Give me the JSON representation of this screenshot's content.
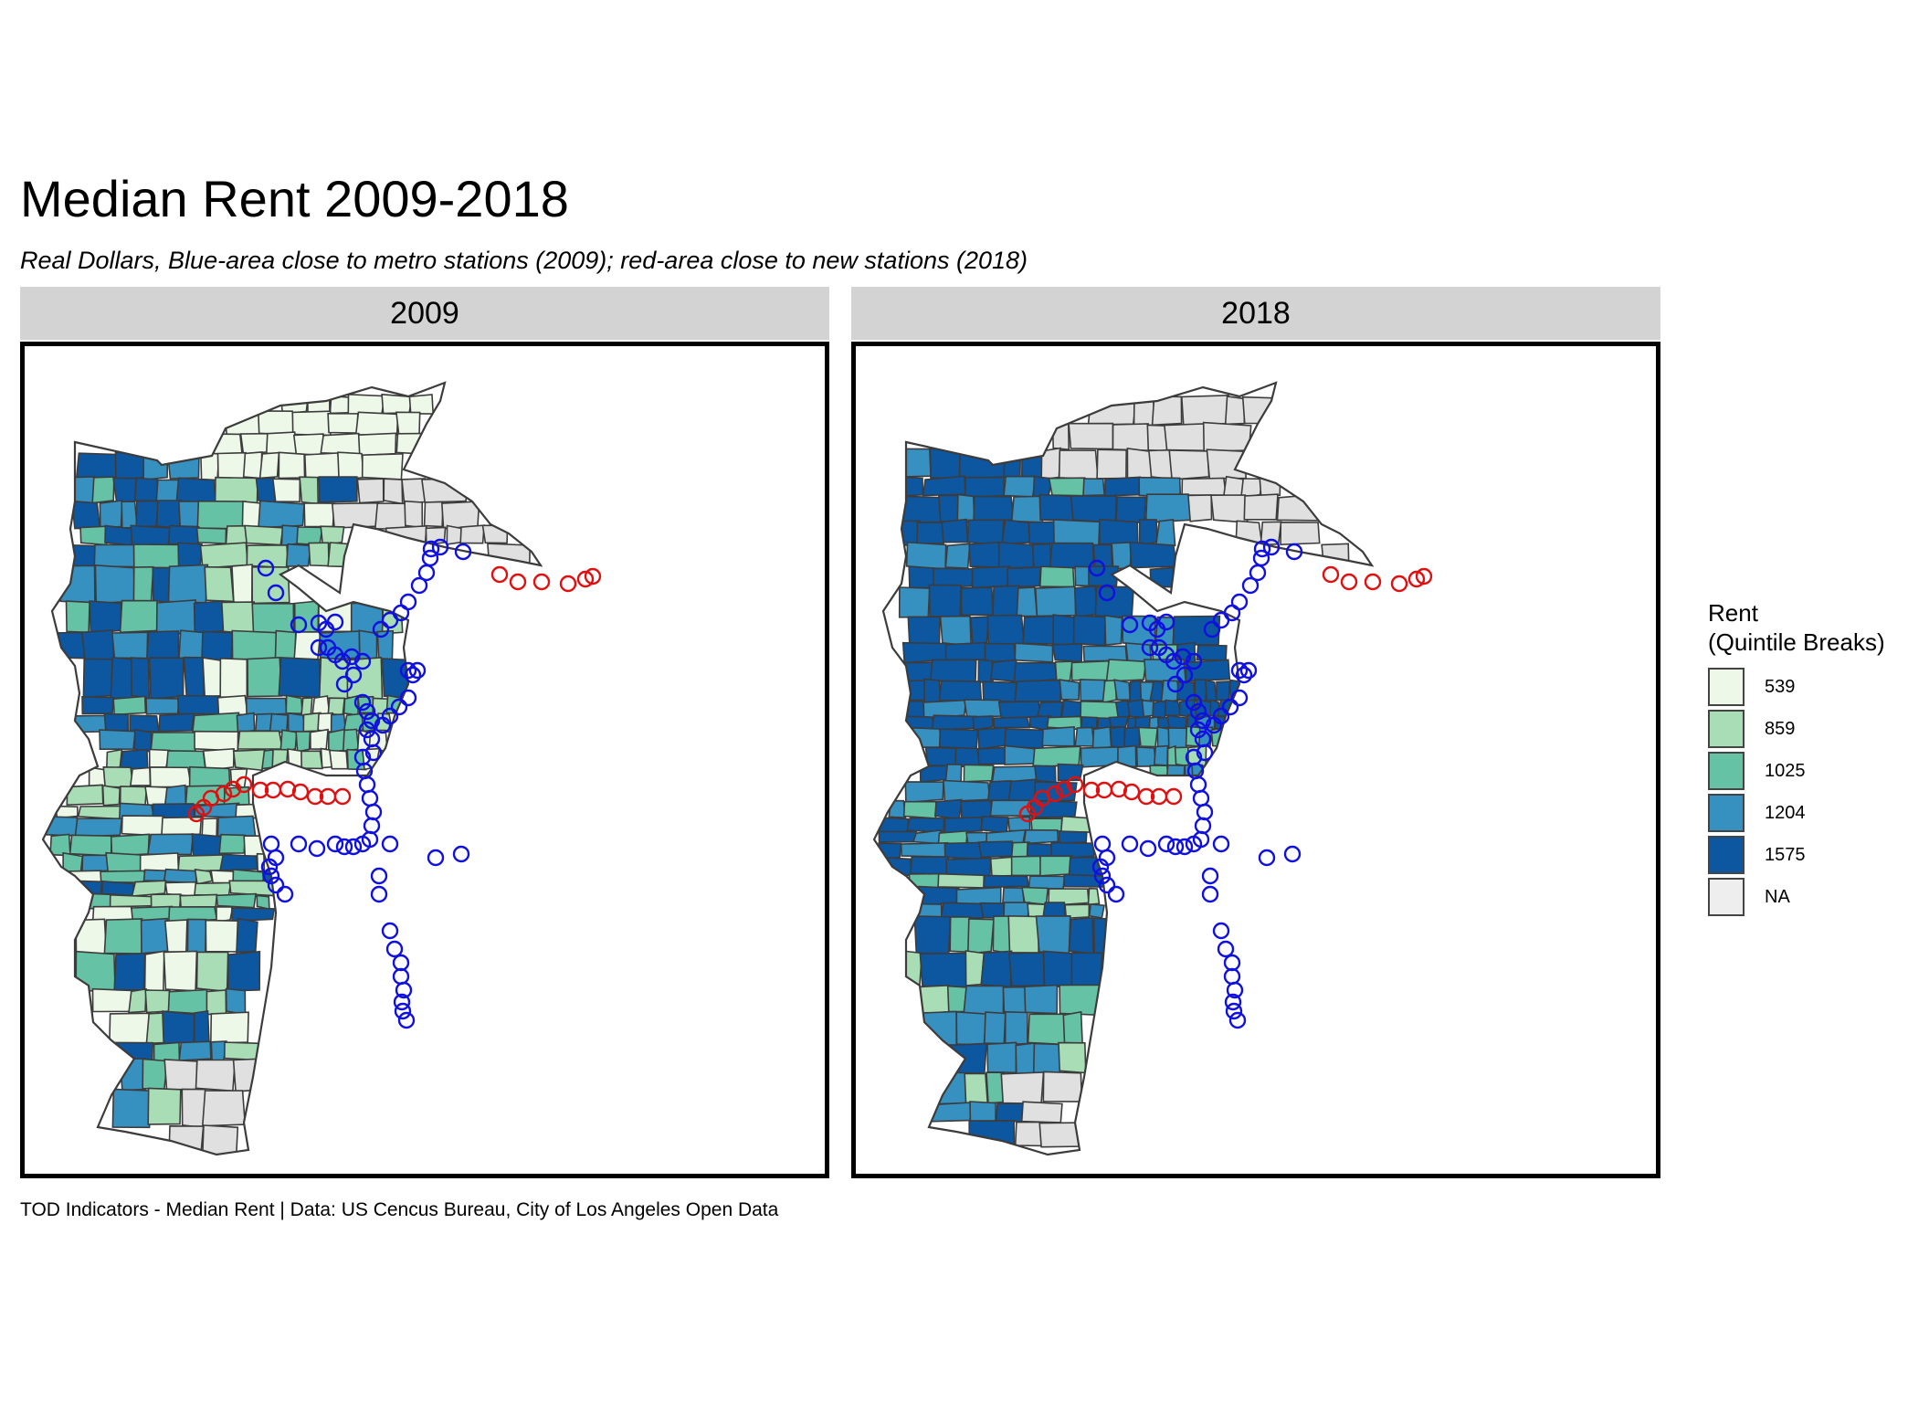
{
  "title": "Median Rent 2009-2018",
  "subtitle": "Real Dollars,  Blue-area close to metro stations (2009); red-area close to new stations (2018)",
  "caption": "TOD Indicators - Median Rent | Data: US Cencus Bureau, City of Los Angeles Open Data",
  "panels": [
    {
      "label": "2009",
      "year": 2009
    },
    {
      "label": "2018",
      "year": 2018
    }
  ],
  "legend": {
    "title_line1": "Rent",
    "title_line2": "(Quintile Breaks)",
    "items": [
      {
        "label": "539",
        "color": "#edf8e9"
      },
      {
        "label": "859",
        "color": "#a8ddb5"
      },
      {
        "label": "1025",
        "color": "#66c2a4"
      },
      {
        "label": "1204",
        "color": "#3690c0"
      },
      {
        "label": "1575",
        "color": "#0d56a0"
      },
      {
        "label": "NA",
        "color": "#eeeeee"
      }
    ]
  },
  "colors": {
    "tract_border": "#3c3c3c",
    "metro_2009_stations": "#1010e0",
    "new_2018_stations": "#e01010",
    "na_fill": "#e0e0e0"
  }
}
